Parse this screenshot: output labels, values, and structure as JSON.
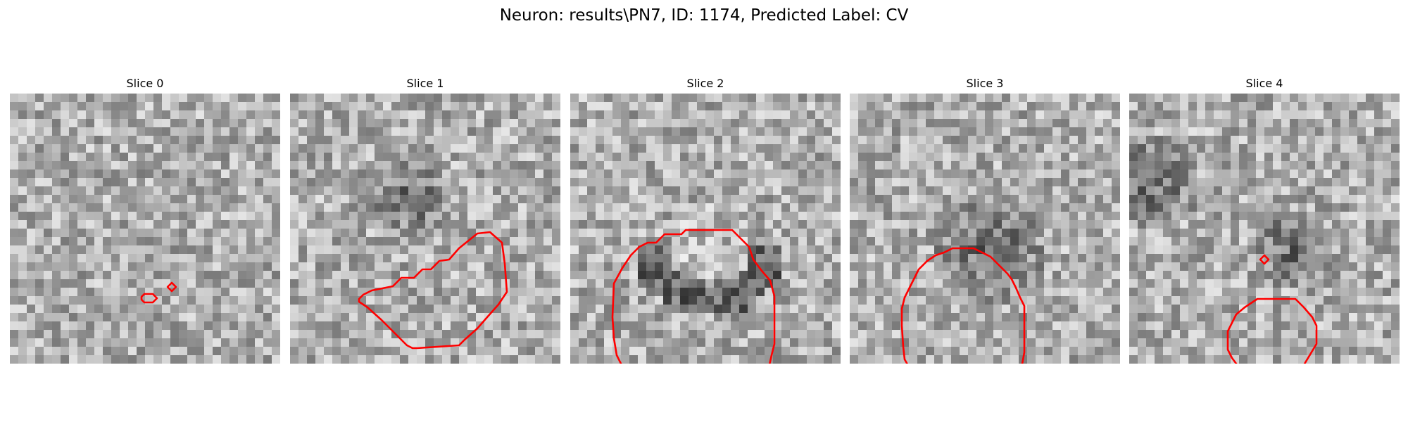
{
  "figure": {
    "title": "Neuron: results\\PN7, ID: 1174, Predicted Label: CV",
    "contour_color": "#ff0000"
  },
  "panels": [
    {
      "title": "Slice 0",
      "contours": [
        [
          [
            187,
            289
          ],
          [
            191,
            285
          ],
          [
            203,
            285
          ],
          [
            209,
            291
          ],
          [
            203,
            297
          ],
          [
            191,
            297
          ],
          [
            187,
            293
          ]
        ],
        [
          [
            224,
            275
          ],
          [
            230,
            269
          ],
          [
            236,
            275
          ],
          [
            230,
            281
          ]
        ]
      ]
    },
    {
      "title": "Slice 1",
      "contours": [
        [
          [
            98,
            292
          ],
          [
            104,
            286
          ],
          [
            116,
            280
          ],
          [
            146,
            274
          ],
          [
            158,
            262
          ],
          [
            176,
            262
          ],
          [
            188,
            250
          ],
          [
            200,
            250
          ],
          [
            212,
            238
          ],
          [
            226,
            236
          ],
          [
            240,
            220
          ],
          [
            266,
            199
          ],
          [
            284,
            197
          ],
          [
            301,
            212
          ],
          [
            305,
            242
          ],
          [
            308,
            282
          ],
          [
            296,
            300
          ],
          [
            280,
            318
          ],
          [
            266,
            334
          ],
          [
            248,
            350
          ],
          [
            240,
            358
          ],
          [
            180,
            362
          ],
          [
            174,
            362
          ],
          [
            166,
            358
          ],
          [
            148,
            340
          ],
          [
            130,
            322
          ],
          [
            110,
            304
          ],
          [
            98,
            296
          ]
        ]
      ]
    },
    {
      "title": "Slice 2",
      "contours": [
        [
          [
            62,
            270
          ],
          [
            74,
            248
          ],
          [
            86,
            230
          ],
          [
            98,
            218
          ],
          [
            110,
            212
          ],
          [
            122,
            212
          ],
          [
            134,
            200
          ],
          [
            158,
            200
          ],
          [
            164,
            194
          ],
          [
            230,
            194
          ],
          [
            236,
            200
          ],
          [
            248,
            212
          ],
          [
            254,
            218
          ],
          [
            260,
            236
          ],
          [
            272,
            252
          ],
          [
            284,
            266
          ],
          [
            290,
            288
          ],
          [
            290,
            332
          ],
          [
            290,
            356
          ],
          [
            286,
            372
          ],
          [
            282,
            390
          ],
          [
            272,
            402
          ],
          [
            258,
            410
          ],
          [
            246,
            416
          ],
          [
            238,
            426
          ],
          [
            224,
            436
          ],
          [
            212,
            438
          ],
          [
            200,
            446
          ],
          [
            188,
            446
          ],
          [
            176,
            450
          ],
          [
            164,
            452
          ],
          [
            152,
            446
          ],
          [
            140,
            440
          ],
          [
            122,
            436
          ],
          [
            110,
            428
          ],
          [
            100,
            420
          ],
          [
            96,
            408
          ],
          [
            84,
            398
          ],
          [
            74,
            388
          ],
          [
            66,
            372
          ],
          [
            62,
            348
          ],
          [
            60,
            318
          ]
        ]
      ]
    },
    {
      "title": "Slice 3",
      "contours": [
        [
          [
            98,
            250
          ],
          [
            110,
            238
          ],
          [
            122,
            230
          ],
          [
            134,
            226
          ],
          [
            146,
            220
          ],
          [
            176,
            220
          ],
          [
            188,
            226
          ],
          [
            200,
            232
          ],
          [
            212,
            244
          ],
          [
            224,
            256
          ],
          [
            230,
            264
          ],
          [
            236,
            276
          ],
          [
            242,
            290
          ],
          [
            248,
            302
          ],
          [
            248,
            326
          ],
          [
            248,
            368
          ],
          [
            244,
            390
          ],
          [
            236,
            404
          ],
          [
            230,
            416
          ],
          [
            218,
            430
          ],
          [
            206,
            440
          ],
          [
            188,
            448
          ],
          [
            176,
            450
          ],
          [
            164,
            450
          ],
          [
            152,
            450
          ],
          [
            140,
            450
          ],
          [
            128,
            448
          ],
          [
            116,
            442
          ],
          [
            104,
            430
          ],
          [
            98,
            418
          ],
          [
            92,
            406
          ],
          [
            86,
            392
          ],
          [
            78,
            378
          ],
          [
            76,
            360
          ],
          [
            74,
            330
          ],
          [
            74,
            306
          ],
          [
            78,
            290
          ],
          [
            86,
            274
          ],
          [
            92,
            262
          ]
        ]
      ]
    },
    {
      "title": "Slice 4",
      "contours": [
        [
          [
            186,
            236
          ],
          [
            192,
            230
          ],
          [
            198,
            236
          ],
          [
            192,
            242
          ]
        ],
        [
          [
            176,
            296
          ],
          [
            182,
            292
          ],
          [
            236,
            292
          ],
          [
            248,
            304
          ],
          [
            260,
            318
          ],
          [
            266,
            330
          ],
          [
            266,
            356
          ],
          [
            260,
            366
          ],
          [
            254,
            376
          ],
          [
            248,
            386
          ],
          [
            240,
            394
          ],
          [
            236,
            404
          ],
          [
            236,
            418
          ],
          [
            230,
            436
          ],
          [
            224,
            442
          ],
          [
            200,
            444
          ],
          [
            194,
            440
          ],
          [
            188,
            432
          ],
          [
            176,
            430
          ],
          [
            164,
            418
          ],
          [
            158,
            410
          ],
          [
            158,
            396
          ],
          [
            152,
            384
          ],
          [
            146,
            376
          ],
          [
            140,
            364
          ],
          [
            140,
            338
          ],
          [
            146,
            326
          ],
          [
            152,
            314
          ],
          [
            164,
            304
          ]
        ]
      ]
    }
  ]
}
